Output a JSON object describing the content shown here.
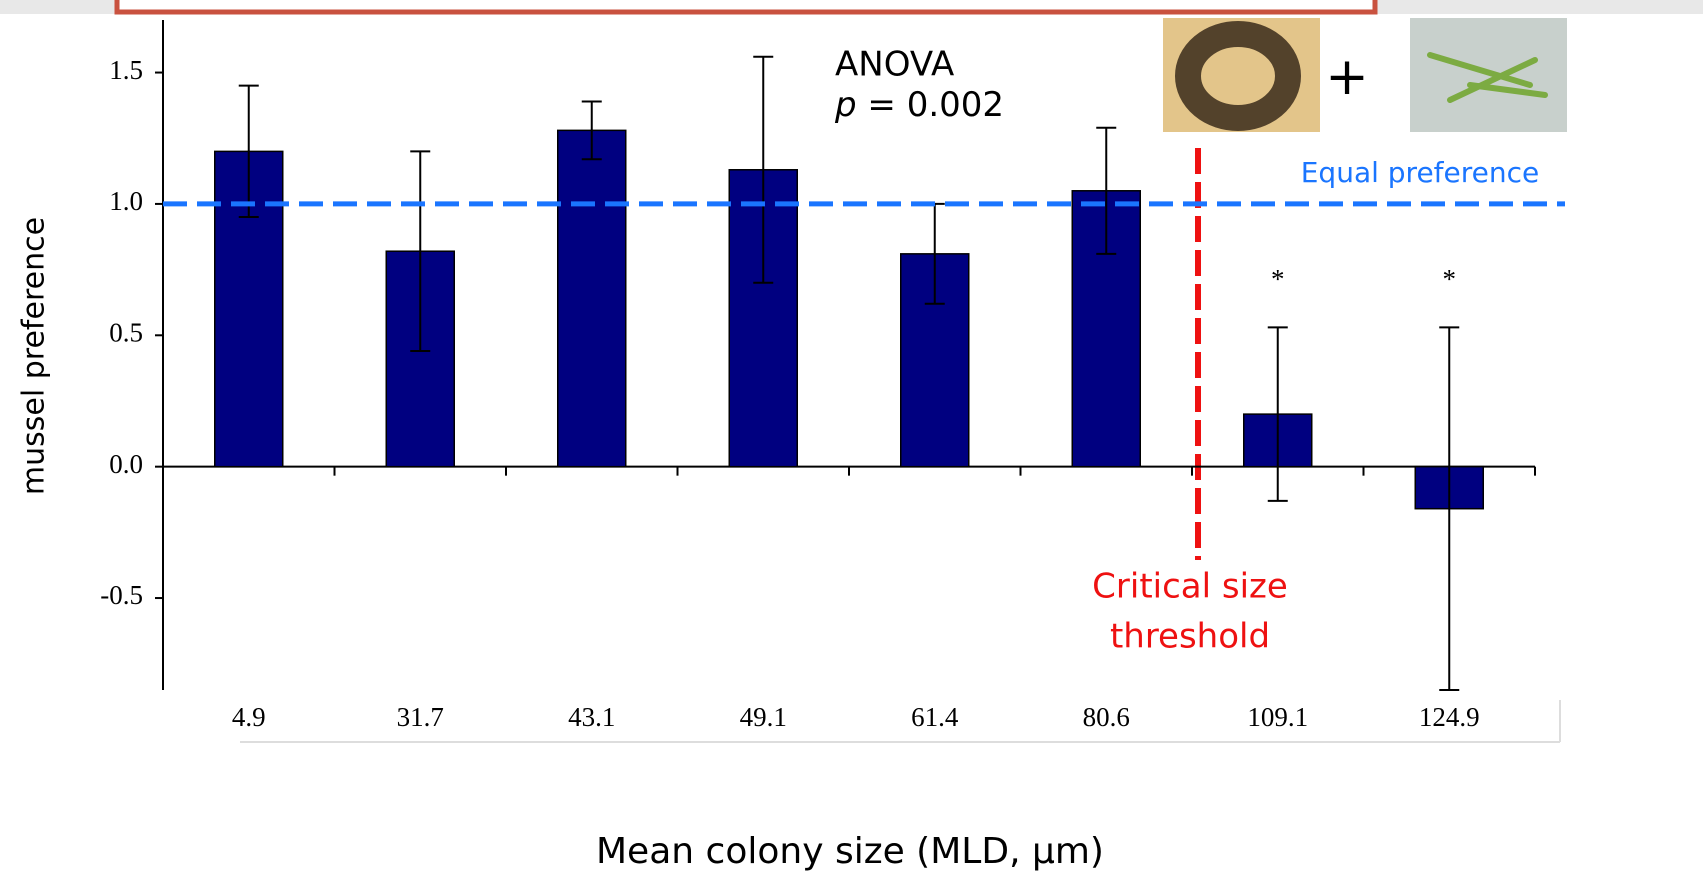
{
  "chart_data": {
    "type": "bar",
    "x_label": "Mean colony size (MLD, µm)",
    "y_label": "mussel preference",
    "categories": [
      "4.9",
      "31.7",
      "43.1",
      "49.1",
      "61.4",
      "80.6",
      "109.1",
      "124.9"
    ],
    "series": [
      {
        "color": "#000080",
        "values": [
          1.2,
          0.82,
          1.28,
          1.13,
          0.81,
          1.05,
          0.2,
          -0.16
        ],
        "errors": [
          0.25,
          0.38,
          0.11,
          0.43,
          0.19,
          0.24,
          0.33,
          0.69
        ]
      }
    ],
    "significance_marks": [
      null,
      null,
      null,
      null,
      null,
      null,
      "*",
      "*"
    ],
    "ylim": [
      -0.85,
      1.7
    ],
    "yticks": [
      -0.5,
      {
        "value": 0,
        "label": "0.0"
      },
      0.5,
      {
        "value": 1,
        "label": "1.0"
      },
      1.5
    ],
    "reference_line": 1,
    "reference_label": "Equal preference",
    "threshold_label": [
      "Critical size",
      "threshold"
    ],
    "stat_test": "ANOVA",
    "p_symbol": "p",
    "p_text": "= 0.002",
    "plus_sign": "+"
  }
}
